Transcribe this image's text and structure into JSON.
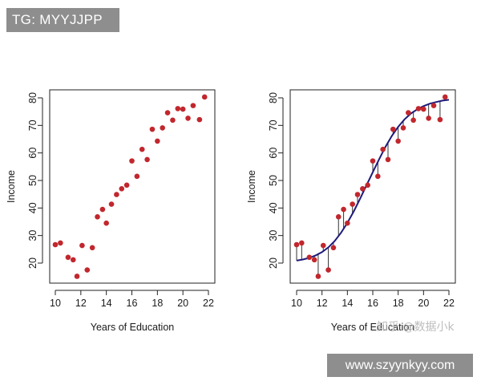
{
  "watermarks": {
    "tag": "TG: MYYJJPP",
    "url": "www.szyynkyy.com",
    "zhihu": "知乎 @数据小k"
  },
  "colors": {
    "point": "#c1272d",
    "curve": "#1f1a7a",
    "residual": "#333333"
  },
  "chart_data": [
    {
      "type": "scatter",
      "xlabel": "Years of Education",
      "ylabel": "Income",
      "xlim": [
        10,
        22
      ],
      "ylim": [
        15,
        80
      ],
      "xticks": [
        10,
        12,
        14,
        16,
        18,
        20,
        22
      ],
      "yticks": [
        20,
        30,
        40,
        50,
        60,
        70,
        80
      ],
      "points": [
        [
          10.0,
          26.7
        ],
        [
          10.4,
          27.3
        ],
        [
          11.0,
          22.1
        ],
        [
          11.4,
          21.2
        ],
        [
          11.7,
          15.2
        ],
        [
          12.1,
          26.4
        ],
        [
          12.5,
          17.5
        ],
        [
          12.9,
          25.6
        ],
        [
          13.3,
          36.8
        ],
        [
          13.7,
          39.5
        ],
        [
          14.0,
          34.5
        ],
        [
          14.4,
          41.4
        ],
        [
          14.8,
          44.9
        ],
        [
          15.2,
          47.0
        ],
        [
          15.6,
          48.3
        ],
        [
          16.0,
          57.1
        ],
        [
          16.4,
          51.5
        ],
        [
          16.8,
          61.3
        ],
        [
          17.2,
          57.6
        ],
        [
          17.6,
          68.6
        ],
        [
          18.0,
          64.3
        ],
        [
          18.4,
          69.1
        ],
        [
          18.8,
          74.6
        ],
        [
          19.2,
          71.9
        ],
        [
          19.6,
          76.1
        ],
        [
          20.0,
          75.9
        ],
        [
          20.4,
          72.6
        ],
        [
          20.8,
          77.2
        ],
        [
          21.3,
          72.1
        ],
        [
          21.7,
          80.3
        ]
      ]
    },
    {
      "type": "scatter",
      "xlabel": "Years of Education",
      "ylabel": "Income",
      "xlim": [
        10,
        22
      ],
      "ylim": [
        15,
        80
      ],
      "xticks": [
        10,
        12,
        14,
        16,
        18,
        20,
        22
      ],
      "yticks": [
        20,
        30,
        40,
        50,
        60,
        70,
        80
      ],
      "points": [
        [
          10.0,
          26.7
        ],
        [
          10.4,
          27.3
        ],
        [
          11.0,
          22.1
        ],
        [
          11.4,
          21.2
        ],
        [
          11.7,
          15.2
        ],
        [
          12.1,
          26.4
        ],
        [
          12.5,
          17.5
        ],
        [
          12.9,
          25.6
        ],
        [
          13.3,
          36.8
        ],
        [
          13.7,
          39.5
        ],
        [
          14.0,
          34.5
        ],
        [
          14.4,
          41.4
        ],
        [
          14.8,
          44.9
        ],
        [
          15.2,
          47.0
        ],
        [
          15.6,
          48.3
        ],
        [
          16.0,
          57.1
        ],
        [
          16.4,
          51.5
        ],
        [
          16.8,
          61.3
        ],
        [
          17.2,
          57.6
        ],
        [
          17.6,
          68.6
        ],
        [
          18.0,
          64.3
        ],
        [
          18.4,
          69.1
        ],
        [
          18.8,
          74.6
        ],
        [
          19.2,
          71.9
        ],
        [
          19.6,
          76.1
        ],
        [
          20.0,
          75.9
        ],
        [
          20.4,
          72.6
        ],
        [
          20.8,
          77.2
        ],
        [
          21.3,
          72.1
        ],
        [
          21.7,
          80.3
        ]
      ],
      "fitted_curve": {
        "x": [
          10.0,
          10.5,
          11.0,
          11.5,
          12.0,
          12.5,
          13.0,
          13.5,
          14.0,
          14.5,
          15.0,
          15.5,
          16.0,
          16.5,
          17.0,
          17.5,
          18.0,
          18.5,
          19.0,
          19.5,
          20.0,
          20.5,
          21.0,
          21.5,
          22.0
        ],
        "y": [
          20.9,
          21.3,
          21.9,
          22.8,
          24.0,
          25.7,
          28.0,
          31.0,
          34.6,
          38.8,
          43.4,
          48.2,
          53.0,
          57.7,
          62.2,
          66.2,
          69.5,
          72.2,
          74.3,
          75.8,
          77.0,
          77.9,
          78.5,
          79.0,
          79.3
        ]
      },
      "show_residuals": true
    }
  ]
}
